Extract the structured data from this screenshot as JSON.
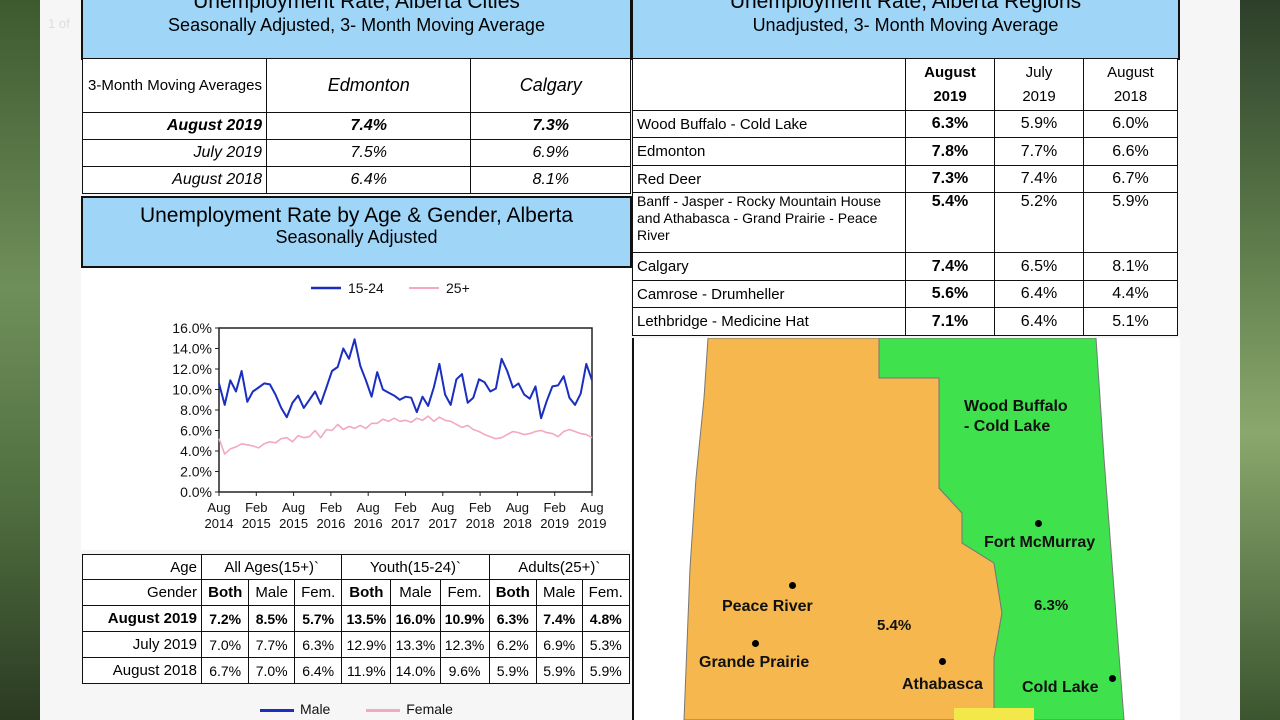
{
  "page_label": "1 of",
  "cities": {
    "title": "Unemployment Rate, Alberta Cities",
    "subtitle": "Seasonally Adjusted, 3- Month Moving Average",
    "header_label": "3-Month Moving Averages",
    "col1": "Edmonton",
    "col2": "Calgary",
    "rows": [
      {
        "period": "August 2019",
        "edmonton": "7.4%",
        "calgary": "7.3%"
      },
      {
        "period": "July 2019",
        "edmonton": "7.5%",
        "calgary": "6.9%"
      },
      {
        "period": "August 2018",
        "edmonton": "6.4%",
        "calgary": "8.1%"
      }
    ]
  },
  "regions": {
    "title": "Unemployment Rate, Alberta Regions",
    "subtitle": "Unadjusted, 3- Month Moving Average",
    "cols": [
      {
        "l1": "August",
        "l2": "2019"
      },
      {
        "l1": "July",
        "l2": "2019"
      },
      {
        "l1": "August",
        "l2": "2018"
      }
    ],
    "rows": [
      {
        "name": "Wood Buffalo - Cold Lake",
        "v1": "6.3%",
        "v2": "5.9%",
        "v3": "6.0%"
      },
      {
        "name": "Edmonton",
        "v1": "7.8%",
        "v2": "7.7%",
        "v3": "6.6%"
      },
      {
        "name": "Red Deer",
        "v1": "7.3%",
        "v2": "7.4%",
        "v3": "6.7%"
      },
      {
        "name": "Banff - Jasper - Rocky Mountain House and Athabasca - Grand Prairie - Peace River",
        "v1": "5.4%",
        "v2": "5.2%",
        "v3": "5.9%"
      },
      {
        "name": "Calgary",
        "v1": "7.4%",
        "v2": "6.5%",
        "v3": "8.1%"
      },
      {
        "name": "Camrose - Drumheller",
        "v1": "5.6%",
        "v2": "6.4%",
        "v3": "4.4%"
      },
      {
        "name": "Lethbridge - Medicine Hat",
        "v1": "7.1%",
        "v2": "6.4%",
        "v3": "5.1%"
      }
    ]
  },
  "age_gender": {
    "title": "Unemployment Rate by Age & Gender, Alberta",
    "subtitle": "Seasonally Adjusted",
    "age_label": "Age",
    "gender_label": "Gender",
    "groups": [
      "All Ages(15+)`",
      "Youth(15-24)`",
      "Adults(25+)`"
    ],
    "genders": [
      "Both",
      "Male",
      "Fem.",
      "Both",
      "Male",
      "Fem.",
      "Both",
      "Male",
      "Fem."
    ],
    "rows": [
      {
        "period": "August 2019",
        "vals": [
          "7.2%",
          "8.5%",
          "5.7%",
          "13.5%",
          "16.0%",
          "10.9%",
          "6.3%",
          "7.4%",
          "4.8%"
        ]
      },
      {
        "period": "July 2019",
        "vals": [
          "7.0%",
          "7.7%",
          "6.3%",
          "12.9%",
          "13.3%",
          "12.3%",
          "6.2%",
          "6.9%",
          "5.3%"
        ]
      },
      {
        "period": "August 2018",
        "vals": [
          "6.7%",
          "7.0%",
          "6.4%",
          "11.9%",
          "14.0%",
          "9.6%",
          "5.9%",
          "5.9%",
          "5.9%"
        ]
      }
    ],
    "legend_male": "Male",
    "legend_female": "Female"
  },
  "chart_data": {
    "type": "line",
    "title": "",
    "xlabel": "",
    "ylabel": "",
    "ylim": [
      0,
      16
    ],
    "yticks": [
      "0.0%",
      "2.0%",
      "4.0%",
      "6.0%",
      "8.0%",
      "10.0%",
      "12.0%",
      "14.0%",
      "16.0%"
    ],
    "xticks": [
      {
        "m": "Aug",
        "y": "2014"
      },
      {
        "m": "Feb",
        "y": "2015"
      },
      {
        "m": "Aug",
        "y": "2015"
      },
      {
        "m": "Feb",
        "y": "2016"
      },
      {
        "m": "Aug",
        "y": "2016"
      },
      {
        "m": "Feb",
        "y": "2017"
      },
      {
        "m": "Aug",
        "y": "2017"
      },
      {
        "m": "Feb",
        "y": "2018"
      },
      {
        "m": "Aug",
        "y": "2018"
      },
      {
        "m": "Feb",
        "y": "2019"
      },
      {
        "m": "Aug",
        "y": "2019"
      }
    ],
    "legend": [
      "15-24",
      "25+"
    ],
    "series": [
      {
        "name": "15-24",
        "color": "#1a2fbf",
        "values": [
          10.6,
          8.5,
          10.9,
          9.8,
          11.8,
          8.8,
          9.8,
          10.2,
          10.6,
          10.5,
          9.5,
          8.2,
          7.3,
          8.7,
          9.4,
          8.2,
          9.0,
          9.8,
          8.6,
          10.2,
          11.8,
          12.2,
          14.0,
          13.0,
          14.9,
          12.3,
          10.9,
          9.3,
          11.7,
          10.0,
          9.7,
          9.4,
          9.0,
          9.3,
          9.2,
          7.8,
          9.3,
          8.4,
          10.2,
          12.5,
          9.5,
          8.5,
          11.0,
          11.5,
          8.7,
          9.2,
          11.0,
          10.7,
          9.8,
          10.1,
          13.0,
          11.8,
          10.2,
          10.6,
          9.5,
          9.1,
          10.3,
          7.2,
          8.9,
          10.3,
          10.4,
          11.3,
          9.2,
          8.5,
          9.6,
          12.5,
          10.9
        ]
      },
      {
        "name": "25+",
        "color": "#f2a9c1",
        "values": [
          5.2,
          3.7,
          4.2,
          4.4,
          4.7,
          4.6,
          4.5,
          4.3,
          4.7,
          4.9,
          4.8,
          5.2,
          5.3,
          4.9,
          5.5,
          5.3,
          5.4,
          6.0,
          5.3,
          6.1,
          6.0,
          6.6,
          6.1,
          6.4,
          6.2,
          6.5,
          6.2,
          6.7,
          6.7,
          7.1,
          6.9,
          7.2,
          6.9,
          7.0,
          6.8,
          7.2,
          7.0,
          7.4,
          6.9,
          7.3,
          7.0,
          6.9,
          6.6,
          6.3,
          6.5,
          6.1,
          5.9,
          5.6,
          5.4,
          5.2,
          5.3,
          5.6,
          5.9,
          5.8,
          5.6,
          5.7,
          5.9,
          6.0,
          5.8,
          5.7,
          5.4,
          5.9,
          6.1,
          5.9,
          5.7,
          5.6,
          5.3
        ]
      }
    ]
  },
  "map": {
    "wood_buffalo": "Wood Buffalo - Cold Lake",
    "fort_mcmurray": "Fort McMurray",
    "cold_lake": "Cold Lake",
    "peace_river": "Peace River",
    "grande_prairie": "Grande Prairie",
    "athabasca": "Athabasca",
    "rate_green": "6.3%",
    "rate_orange": "5.4%",
    "color_orange": "#f5b74e",
    "color_green": "#3fe24c"
  }
}
